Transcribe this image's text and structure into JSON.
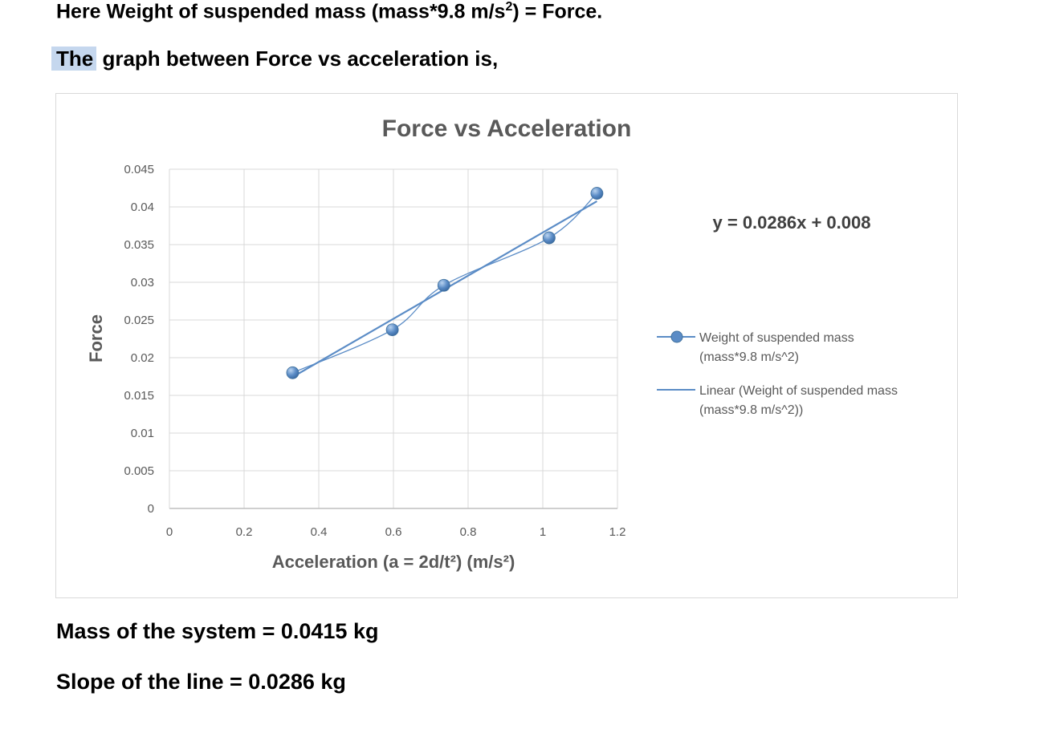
{
  "document": {
    "line1_prefix": "Here Weight of suspended mass (mass*9.8 m/s",
    "line1_sup": "2",
    "line1_suffix": ") = Force.",
    "line2_highlight": "The",
    "line2_rest": " graph between Force vs acceleration is,",
    "mass_line": "Mass of the system = 0.0415 kg",
    "slope_line": "Slope of the line = 0.0286 kg"
  },
  "chart_data": {
    "type": "scatter",
    "title": "Force vs Acceleration",
    "xlabel": "Acceleration (a = 2d/t²) (m/s²)",
    "ylabel": "Force",
    "xlim": [
      0,
      1.2
    ],
    "ylim": [
      0,
      0.045
    ],
    "x_ticks": [
      "0",
      "0.2",
      "0.4",
      "0.6",
      "0.8",
      "1",
      "1.2"
    ],
    "y_ticks": [
      "0",
      "0.005",
      "0.01",
      "0.015",
      "0.02",
      "0.025",
      "0.03",
      "0.035",
      "0.04",
      "0.045"
    ],
    "grid": true,
    "series": [
      {
        "name": "Weight of suspended mass (mass*9.8 m/s^2)",
        "legend_lines": [
          "Weight of suspended mass",
          "(mass*9.8 m/s^2)"
        ],
        "style": "smooth-line-with-markers",
        "color": "#5b8cc6",
        "x": [
          0.33,
          0.597,
          0.735,
          1.017,
          1.145
        ],
        "y": [
          0.018,
          0.0237,
          0.0296,
          0.0359,
          0.0418
        ]
      }
    ],
    "trendline": {
      "name": "Linear (Weight of suspended mass (mass*9.8 m/s^2))",
      "legend_lines": [
        "Linear (Weight of suspended mass",
        "(mass*9.8 m/s^2))"
      ],
      "slope": 0.0286,
      "intercept": 0.008,
      "color": "#5b8cc6",
      "equation": "y = 0.0286x + 0.008"
    },
    "legend_position": "right"
  }
}
